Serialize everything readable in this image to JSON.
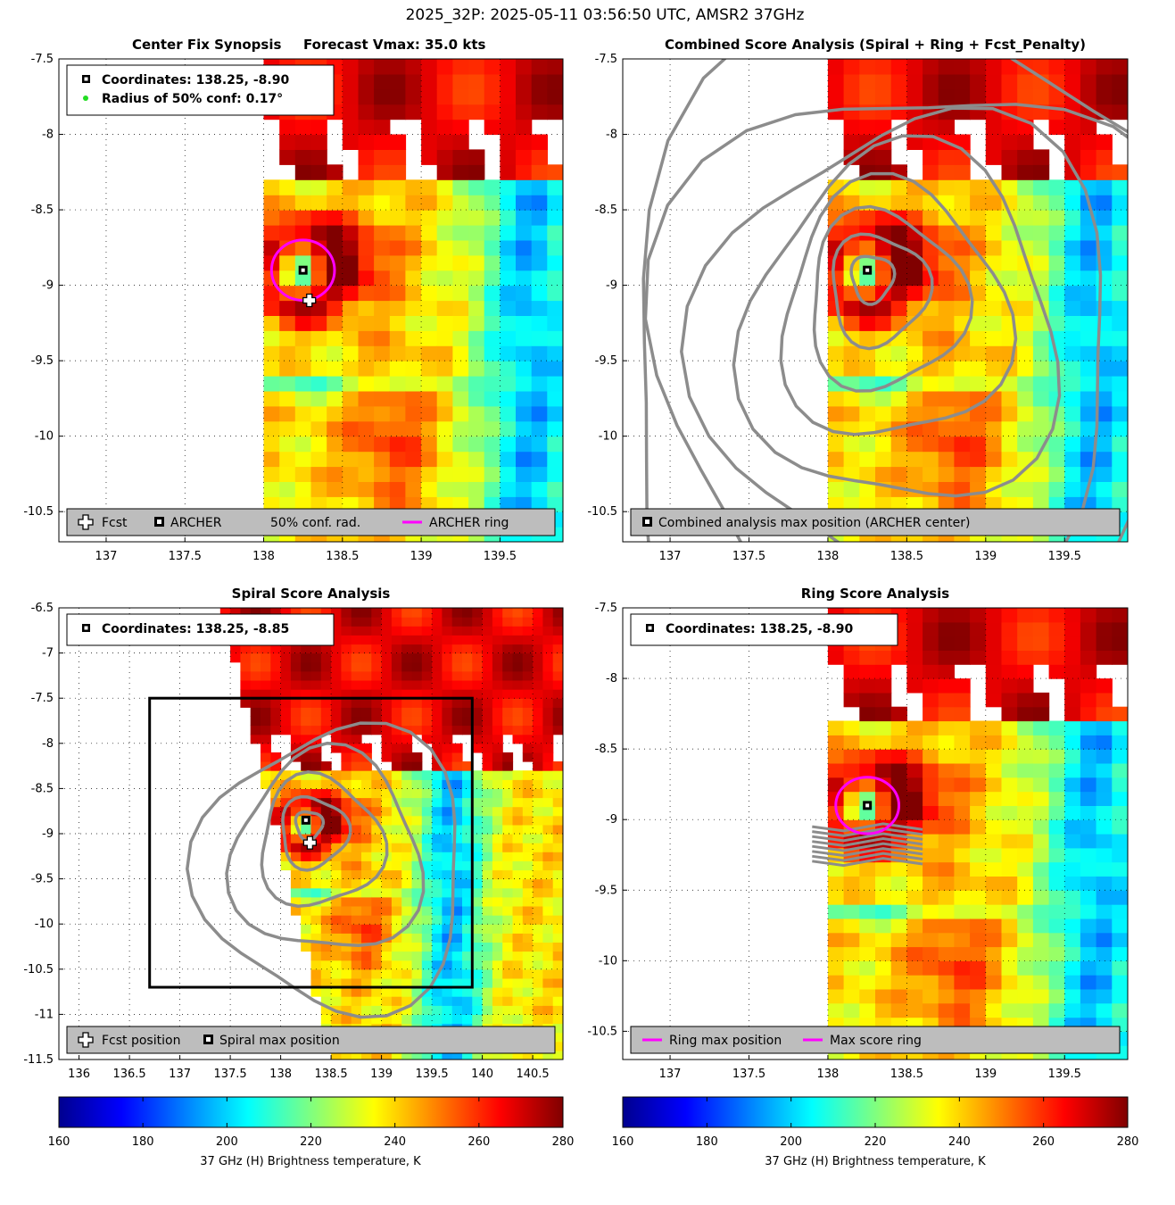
{
  "figure_title": "2025_32P: 2025-05-11 03:56:50 UTC, AMSR2 37GHz",
  "colorbar": {
    "label": "37 GHz (H) Brightness temperature, K",
    "ticks": [
      "160",
      "180",
      "200",
      "220",
      "240",
      "260",
      "280"
    ],
    "range": [
      160,
      280
    ],
    "colormap": "jet"
  },
  "chart_data": [
    {
      "panel": "Center Fix Synopsis",
      "type": "heatmap",
      "title": "Center Fix Synopsis",
      "subtitle": "Forecast Vmax: 35.0 kts",
      "xlim": [
        136.7,
        139.9
      ],
      "ylim": [
        -10.7,
        -7.5
      ],
      "xticks": [
        "137",
        "137.5",
        "138",
        "138.5",
        "139",
        "139.5"
      ],
      "yticks": [
        "-7.5",
        "-8",
        "-8.5",
        "-9",
        "-9.5",
        "-10",
        "-10.5"
      ],
      "info_lines": [
        "Coordinates: 138.25, -8.90",
        "Radius of 50% conf: 0.17°"
      ],
      "legend": [
        "Fcst",
        "ARCHER",
        "50% conf. rad.",
        "ARCHER ring"
      ],
      "archer_center": [
        138.25,
        -8.9
      ],
      "forecast_position": [
        138.29,
        -9.1
      ],
      "ring_radius_deg": 0.2,
      "conf_radius_deg": 0.17
    },
    {
      "panel": "Combined Score Analysis",
      "type": "heatmap",
      "title": "Combined Score Analysis (Spiral + Ring + Fcst_Penalty)",
      "xlim": [
        136.7,
        139.9
      ],
      "ylim": [
        -10.7,
        -7.5
      ],
      "xticks": [
        "137",
        "137.5",
        "138",
        "138.5",
        "139",
        "139.5"
      ],
      "yticks": [
        "-7.5",
        "-8",
        "-8.5",
        "-9",
        "-9.5",
        "-10",
        "-10.5"
      ],
      "legend": [
        "Combined analysis max position (ARCHER center)"
      ],
      "max_position": [
        138.25,
        -8.9
      ]
    },
    {
      "panel": "Spiral Score Analysis",
      "type": "heatmap",
      "title": "Spiral Score Analysis",
      "xlim": [
        135.8,
        140.8
      ],
      "ylim": [
        -11.5,
        -6.5
      ],
      "xticks": [
        "136",
        "136.5",
        "137",
        "137.5",
        "138",
        "138.5",
        "139",
        "139.5",
        "140",
        "140.5"
      ],
      "yticks": [
        "-6.5",
        "-7",
        "-7.5",
        "-8",
        "-8.5",
        "-9",
        "-9.5",
        "-10",
        "-10.5",
        "-11",
        "-11.5"
      ],
      "info_lines": [
        "Coordinates: 138.25, -8.85"
      ],
      "legend": [
        "Fcst position",
        "Spiral max position"
      ],
      "max_position": [
        138.25,
        -8.85
      ],
      "forecast_position": [
        138.29,
        -9.1
      ],
      "search_box": {
        "x": [
          136.7,
          139.9
        ],
        "y": [
          -10.7,
          -7.5
        ]
      }
    },
    {
      "panel": "Ring Score Analysis",
      "type": "heatmap",
      "title": "Ring Score Analysis",
      "xlim": [
        136.7,
        139.9
      ],
      "ylim": [
        -10.7,
        -7.5
      ],
      "xticks": [
        "137",
        "137.5",
        "138",
        "138.5",
        "139",
        "139.5"
      ],
      "yticks": [
        "-7.5",
        "-8",
        "-8.5",
        "-9",
        "-9.5",
        "-10",
        "-10.5"
      ],
      "info_lines": [
        "Coordinates: 138.25, -8.90"
      ],
      "legend": [
        "Ring max position",
        "Max score ring"
      ],
      "max_position": [
        138.25,
        -8.9
      ],
      "ring_radius_deg": 0.2
    }
  ],
  "colors": {
    "ring": "#ff00ff",
    "conf_dot": "#22dd22",
    "contour": "#8c8c8c",
    "legend_bg": "#bdbdbd"
  }
}
